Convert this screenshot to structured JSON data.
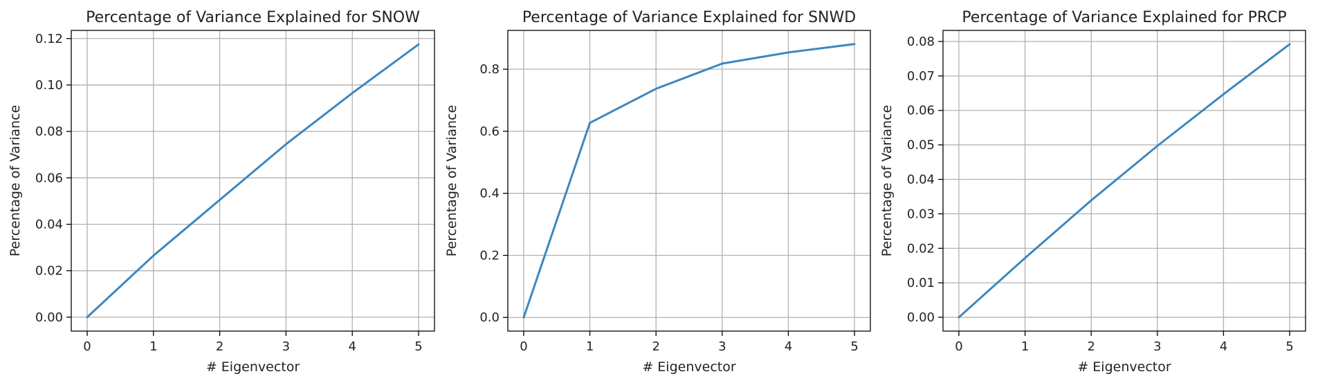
{
  "chart_data": [
    {
      "type": "line",
      "title": "Percentage of Variance Explained for SNOW",
      "xlabel": "# Eigenvector",
      "ylabel": "Percentage of Variance",
      "x": [
        0,
        1,
        2,
        3,
        4,
        5
      ],
      "series": [
        {
          "values": [
            0.0,
            0.0265,
            0.0505,
            0.0745,
            0.0965,
            0.1175
          ]
        }
      ],
      "xticks": [
        0,
        1,
        2,
        3,
        4,
        5
      ],
      "xtick_labels": [
        "0",
        "1",
        "2",
        "3",
        "4",
        "5"
      ],
      "yticks": [
        0.0,
        0.02,
        0.04,
        0.06,
        0.08,
        0.1,
        0.12
      ],
      "ytick_labels": [
        "0.00",
        "0.02",
        "0.04",
        "0.06",
        "0.08",
        "0.10",
        "0.12"
      ],
      "xlim": [
        -0.24,
        5.24
      ],
      "ylim": [
        -0.006,
        0.1235
      ],
      "grid": true,
      "line_color": "#3c87c0"
    },
    {
      "type": "line",
      "title": "Percentage of Variance Explained for SNWD",
      "xlabel": "# Eigenvector",
      "ylabel": "Percentage of Variance",
      "x": [
        0,
        1,
        2,
        3,
        4,
        5
      ],
      "series": [
        {
          "values": [
            0.0,
            0.627,
            0.737,
            0.818,
            0.854,
            0.881
          ]
        }
      ],
      "xticks": [
        0,
        1,
        2,
        3,
        4,
        5
      ],
      "xtick_labels": [
        "0",
        "1",
        "2",
        "3",
        "4",
        "5"
      ],
      "yticks": [
        0.0,
        0.2,
        0.4,
        0.6,
        0.8
      ],
      "ytick_labels": [
        "0.0",
        "0.2",
        "0.4",
        "0.6",
        "0.8"
      ],
      "xlim": [
        -0.24,
        5.24
      ],
      "ylim": [
        -0.044,
        0.925
      ],
      "grid": true,
      "line_color": "#3c87c0"
    },
    {
      "type": "line",
      "title": "Percentage of Variance Explained for PRCP",
      "xlabel": "# Eigenvector",
      "ylabel": "Percentage of Variance",
      "x": [
        0,
        1,
        2,
        3,
        4,
        5
      ],
      "series": [
        {
          "values": [
            0.0,
            0.0172,
            0.0339,
            0.0497,
            0.0647,
            0.0792
          ]
        }
      ],
      "xticks": [
        0,
        1,
        2,
        3,
        4,
        5
      ],
      "xtick_labels": [
        "0",
        "1",
        "2",
        "3",
        "4",
        "5"
      ],
      "yticks": [
        0.0,
        0.01,
        0.02,
        0.03,
        0.04,
        0.05,
        0.06,
        0.07,
        0.08
      ],
      "ytick_labels": [
        "0.00",
        "0.01",
        "0.02",
        "0.03",
        "0.04",
        "0.05",
        "0.06",
        "0.07",
        "0.08"
      ],
      "xlim": [
        -0.24,
        5.24
      ],
      "ylim": [
        -0.004,
        0.0832
      ],
      "grid": true,
      "line_color": "#3c87c0"
    }
  ]
}
